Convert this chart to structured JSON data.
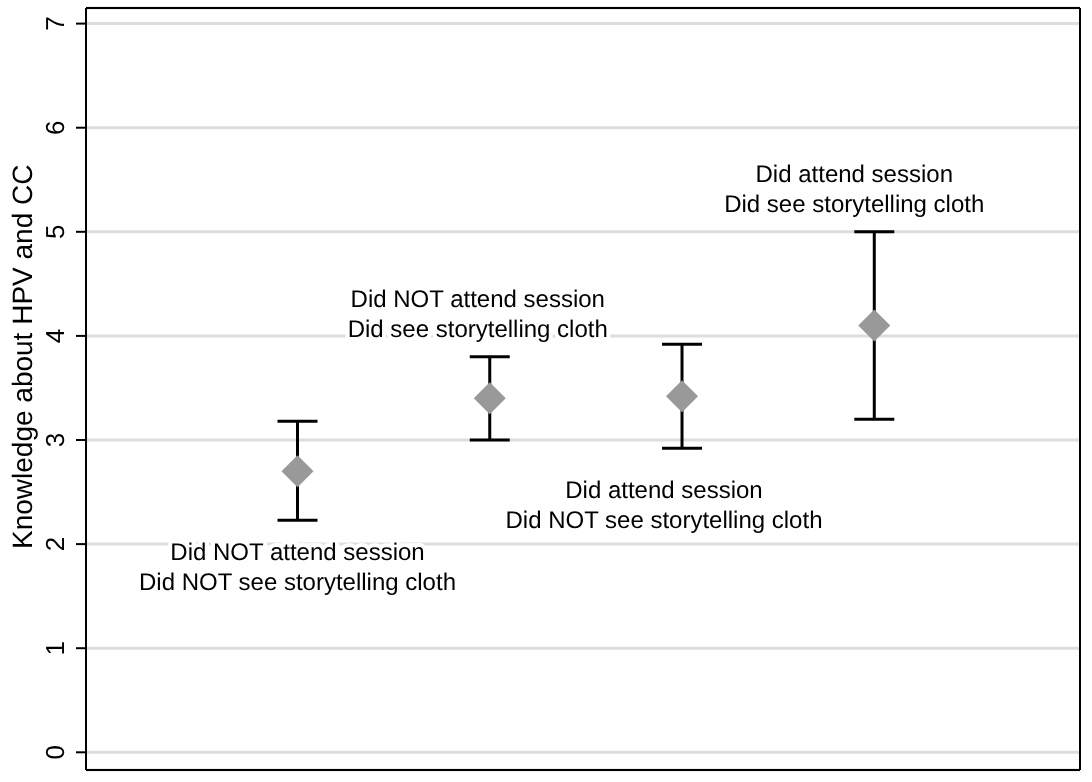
{
  "chart_data": {
    "type": "scatter",
    "ylabel": "Knowledge about HPV and CC",
    "categories": [
      null,
      null,
      null,
      null
    ],
    "values": [
      2.7,
      3.4,
      3.42,
      4.1
    ],
    "errors": [
      [
        2.23,
        3.18
      ],
      [
        3.0,
        3.8
      ],
      [
        2.92,
        3.92
      ],
      [
        3.2,
        5.0
      ]
    ],
    "color": "#999999",
    "marker": "diamond",
    "ylim": [
      -0.17,
      7.15
    ],
    "yticks": [
      0,
      1,
      2,
      3,
      4,
      5,
      6,
      7
    ],
    "grid": "y",
    "legend": false,
    "annotations": [
      "Did NOT attend session\nDid NOT see storytelling cloth",
      "Did NOT attend session\nDid see storytelling cloth",
      "Did attend session\nDid NOT see storytelling cloth",
      "Did attend session\nDid see storytelling cloth"
    ]
  }
}
